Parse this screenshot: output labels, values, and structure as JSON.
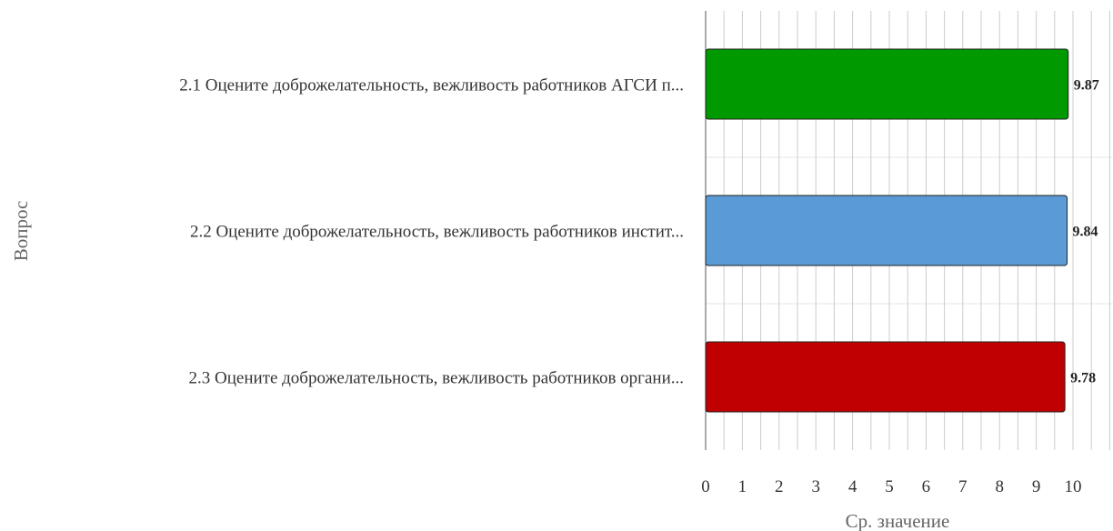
{
  "chart_data": {
    "type": "bar",
    "orientation": "horizontal",
    "categories": [
      "2.1 Оцените доброжелательность, вежливость работников АГСИ п...",
      "2.2 Оцените доброжелательность, вежливость работников инстит...",
      "2.3 Оцените доброжелательность, вежливость работников органи..."
    ],
    "values": [
      9.87,
      9.84,
      9.78
    ],
    "data_labels": [
      "9.87",
      "9.84",
      "9.78"
    ],
    "colors": [
      "#009900",
      "#5b9bd5",
      "#c00000"
    ],
    "xlabel": "Ср. значение",
    "ylabel": "Вопрос",
    "xlim": [
      0,
      10
    ],
    "xticks": [
      "0",
      "1",
      "2",
      "3",
      "4",
      "5",
      "6",
      "7",
      "8",
      "9",
      "10"
    ],
    "grid": true,
    "legend": "none"
  }
}
